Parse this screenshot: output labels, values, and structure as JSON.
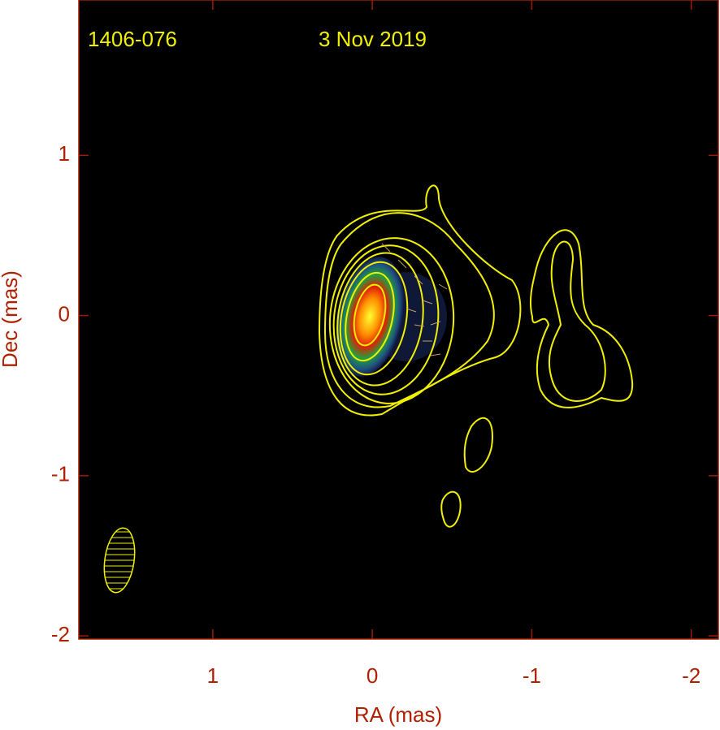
{
  "chart_data": {
    "type": "image",
    "annotations": [
      "1406-076",
      "3 Nov 2019"
    ],
    "x_label": "RA (mas)",
    "y_label": "Dec (mas)",
    "xlim": [
      1.84,
      -2.17
    ],
    "ylim": [
      -2.02,
      1.97
    ],
    "xticks": [
      1,
      0,
      -1,
      -2
    ],
    "yticks": [
      1,
      0,
      -1,
      -2
    ]
  }
}
